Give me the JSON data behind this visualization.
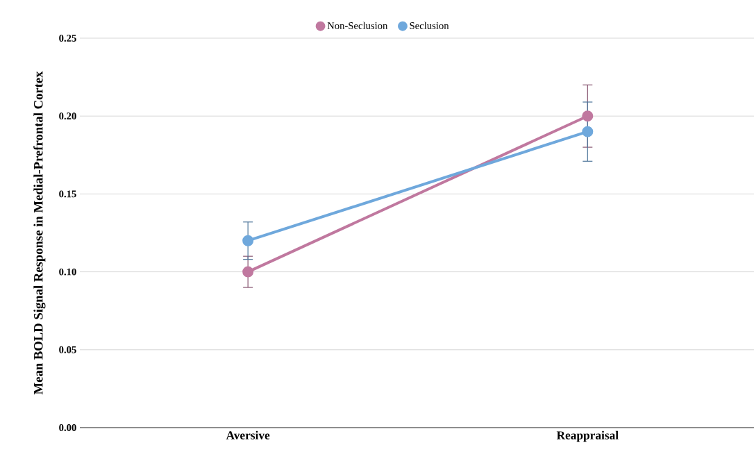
{
  "chart_data": {
    "type": "line",
    "ylabel": "Mean BOLD Signal Response in Medial-Prefrontal Cortex",
    "categories": [
      "Aversive",
      "Reappraisal"
    ],
    "series": [
      {
        "name": "Non-Seclusion",
        "color": "#c0789f",
        "values": [
          0.1,
          0.2
        ],
        "errors": [
          0.01,
          0.02
        ]
      },
      {
        "name": "Seclusion",
        "color": "#6fa8dc",
        "values": [
          0.12,
          0.19
        ],
        "errors": [
          0.012,
          0.019
        ]
      }
    ],
    "ylim": [
      0,
      0.25
    ],
    "yticks": [
      {
        "value": 0,
        "label": "0.00"
      },
      {
        "value": 0.05,
        "label": "0.05"
      },
      {
        "value": 0.1,
        "label": "0.10"
      },
      {
        "value": 0.15,
        "label": "0.15"
      },
      {
        "value": 0.2,
        "label": "0.20"
      },
      {
        "value": 0.25,
        "label": "0.25"
      }
    ],
    "grid": "y",
    "legend": "top",
    "marker": "circle",
    "line_style": "solid"
  }
}
